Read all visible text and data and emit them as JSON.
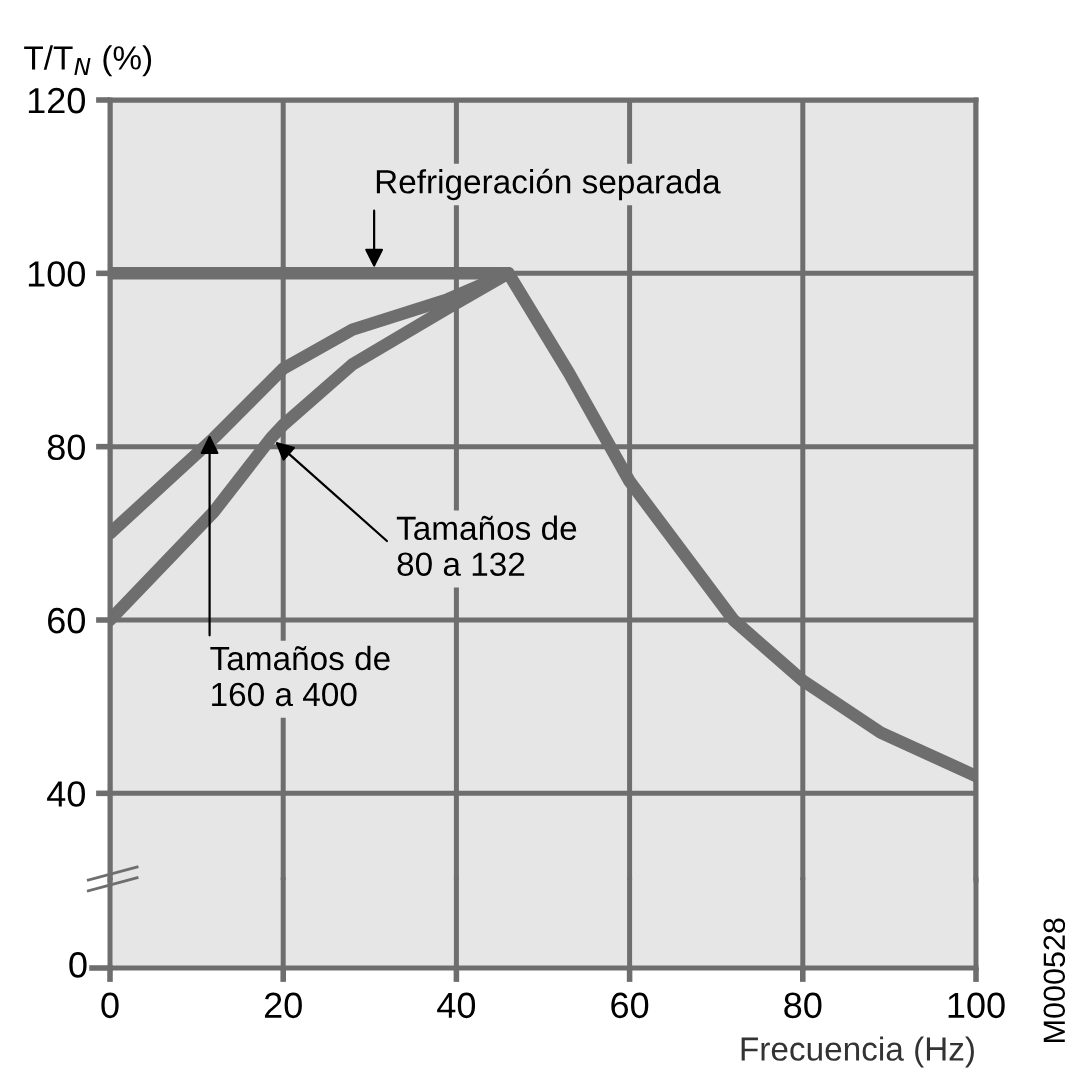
{
  "chart_data": {
    "type": "line",
    "ylabel": "T/T$_{N}$ (%)",
    "xlabel": "Frecuencia (Hz)",
    "xlim": [
      0,
      100
    ],
    "xticks": [
      0,
      20,
      40,
      60,
      80,
      100
    ],
    "ylim": [
      30,
      120
    ],
    "yticks": [
      40,
      60,
      80,
      100,
      120
    ],
    "grid": true,
    "marker": "none",
    "line_style": "solid",
    "series": [
      {
        "color": "#6e6e6e",
        "x": [
          0,
          46,
          53,
          60,
          72,
          80,
          89,
          100
        ],
        "values": [
          100,
          100,
          88.5,
          76,
          60,
          53,
          47,
          42
        ]
      },
      {
        "color": "#6e6e6e",
        "x": [
          0,
          12,
          20,
          28,
          39,
          46
        ],
        "values": [
          70,
          81,
          89,
          93.5,
          97,
          100
        ]
      },
      {
        "color": "#6e6e6e",
        "x": [
          0,
          12,
          18.6,
          20,
          28,
          39,
          46
        ],
        "values": [
          60,
          72.5,
          81,
          82.5,
          89.5,
          96,
          100
        ]
      }
    ],
    "annotations": [
      {
        "text": "Refrigeración separada",
        "x": 30.5,
        "y": 100
      },
      {
        "text": "Tamaños de\n80 a 132",
        "x": 18.6,
        "y": 81
      },
      {
        "text": "Tamaños de\n160 a 400",
        "x": 11.5,
        "y": 82
      },
      "0",
      "M000528"
    ]
  }
}
